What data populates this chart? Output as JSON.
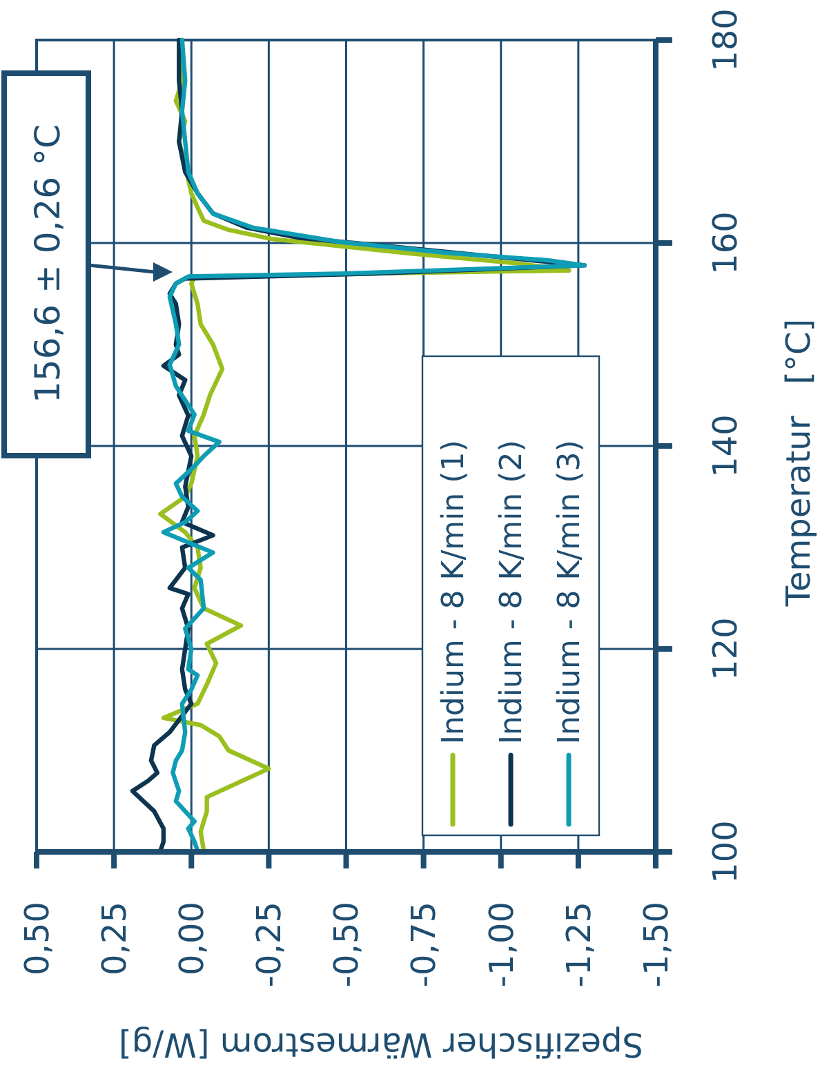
{
  "chart_data": {
    "type": "line",
    "ylabel": "Temperatur   [°C]",
    "xlabel": "Spezifischer Wärmestrom [W/g]",
    "ylim": [
      100,
      180
    ],
    "yticks": [
      100,
      120,
      140,
      160,
      180
    ],
    "xlim": [
      0.5,
      -1.5
    ],
    "xticks": [
      {
        "value": 0.5,
        "label": "0,50"
      },
      {
        "value": 0.25,
        "label": "0,25"
      },
      {
        "value": 0,
        "label": "0,00"
      },
      {
        "value": -0.25,
        "label": "-0,25"
      },
      {
        "value": -0.5,
        "label": "-0,50"
      },
      {
        "value": -0.75,
        "label": "-0,75"
      },
      {
        "value": -1,
        "label": "-1,00"
      },
      {
        "value": -1.25,
        "label": "-1,25"
      },
      {
        "value": -1.5,
        "label": "-1,50"
      }
    ],
    "grid": true,
    "legend": "bottom right",
    "marker": "none",
    "line_style": "solid",
    "annotations": [
      "156,6 ± 0,26 °C"
    ],
    "series": [
      {
        "name": "Indium - 8 K/min (1)",
        "color": "#9abf1f",
        "values": [
          100.1,
          102,
          104,
          105.4,
          108.2,
          110,
          111.4,
          112.5,
          113.2,
          114.6,
          116.5,
          118.6,
          120.5,
          122.3,
          124,
          126,
          128,
          130,
          131.5,
          133.3,
          135,
          136.3,
          139,
          141,
          143.1,
          145,
          147.6,
          150,
          152,
          154,
          156,
          156.6,
          157.0,
          157.3,
          158.0,
          159.0,
          160.4,
          161.3,
          162.2,
          163.5,
          164.9,
          167.6,
          170,
          172,
          174,
          176,
          178,
          180
        ],
        "x": [
          -0.04,
          -0.03,
          -0.05,
          -0.05,
          -0.25,
          -0.12,
          -0.09,
          -0.03,
          0.09,
          -0.02,
          -0.05,
          -0.08,
          -0.05,
          -0.16,
          -0.04,
          -0.01,
          -0.03,
          -0.02,
          0.02,
          0.1,
          0.02,
          0,
          -0.02,
          -0.01,
          -0.04,
          -0.06,
          -0.1,
          -0.07,
          -0.03,
          -0.02,
          0,
          -0.01,
          -0.6,
          -1.22,
          -1.05,
          -0.7,
          -0.26,
          -0.12,
          -0.04,
          -0.02,
          0,
          0.02,
          0.04,
          0.02,
          0.05,
          0.03,
          0.04,
          0.03
        ]
      },
      {
        "name": "Indium - 8 K/min (2)",
        "color": "#0d3450",
        "values": [
          100.1,
          101,
          102.3,
          104,
          106,
          107,
          107.8,
          109,
          110.5,
          111.8,
          113,
          114.6,
          116,
          118,
          120,
          122,
          124,
          125.4,
          126,
          128,
          130,
          131.2,
          132.5,
          134,
          136,
          139,
          141,
          143,
          145,
          146.5,
          147.9,
          149,
          150,
          152,
          154,
          155,
          156,
          156.5,
          157.0,
          157.8,
          158.3,
          159.5,
          160.5,
          161.5,
          162.9,
          164.9,
          167,
          170,
          173,
          176,
          180
        ],
        "x": [
          0.1,
          0.09,
          0.09,
          0.12,
          0.19,
          0.14,
          0.11,
          0.13,
          0.12,
          0.07,
          0.04,
          0,
          0.02,
          0.03,
          0.02,
          0.01,
          0.03,
          0.01,
          0.07,
          0.02,
          0.03,
          -0.07,
          0.03,
          0.01,
          0.02,
          0,
          0.03,
          0.01,
          0.04,
          0.02,
          0.09,
          0.04,
          0.05,
          0.04,
          0.05,
          0.07,
          0.05,
          0.02,
          -0.6,
          -1.27,
          -1.1,
          -0.7,
          -0.35,
          -0.18,
          -0.07,
          -0.02,
          0.02,
          0.04,
          0.03,
          0.04,
          0.04
        ]
      },
      {
        "name": "Indium - 8 K/min (3)",
        "color": "#0f9db5",
        "values": [
          100.1,
          101,
          102.3,
          103,
          105,
          106,
          107.8,
          109,
          110,
          111.8,
          114.6,
          116,
          117.4,
          118,
          120,
          122,
          124,
          126.8,
          128,
          129.5,
          131.5,
          132.5,
          133.6,
          135,
          136.3,
          138,
          139,
          140.4,
          141.5,
          143.1,
          145.9,
          148,
          150,
          152,
          154.7,
          156,
          156.7,
          157.0,
          157.8,
          158.3,
          159,
          160.1,
          161.5,
          162.9,
          164.9,
          167,
          170,
          173,
          176,
          180
        ],
        "x": [
          -0.02,
          -0.01,
          0.01,
          -0.01,
          0.05,
          0.04,
          0.06,
          0.05,
          0.03,
          0.02,
          0.03,
          0,
          -0.02,
          0.01,
          0,
          0.02,
          -0.04,
          -0.03,
          0.01,
          -0.07,
          0.09,
          0.02,
          -0.02,
          0.03,
          0.05,
          -0.01,
          -0.04,
          -0.09,
          0.01,
          -0.01,
          0.05,
          0.07,
          0.04,
          0.05,
          0.07,
          0.05,
          0.01,
          -0.5,
          -1.27,
          -1.15,
          -0.84,
          -0.48,
          -0.2,
          -0.07,
          -0.02,
          0.01,
          0.02,
          0.03,
          0.02,
          0.03
        ]
      }
    ]
  }
}
